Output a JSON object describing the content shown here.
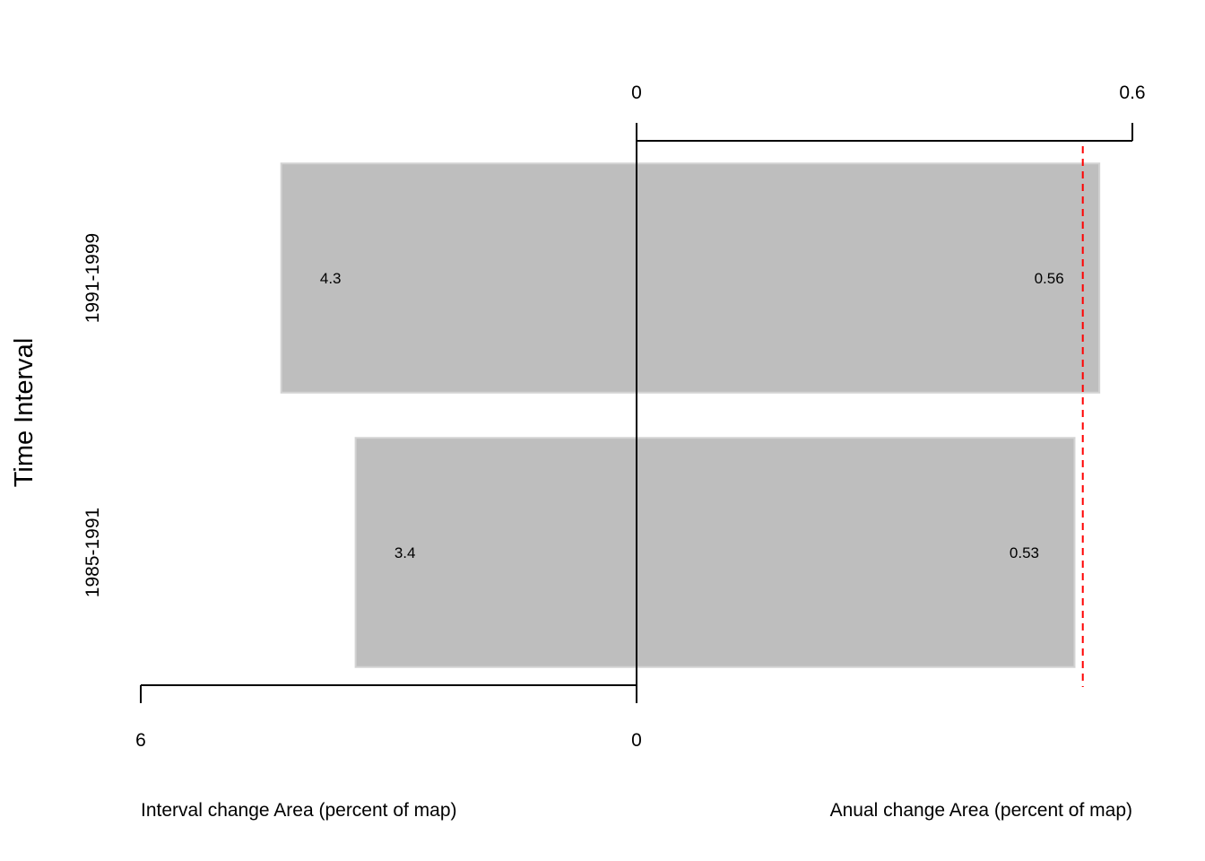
{
  "chart_data": {
    "type": "bar",
    "orientation": "horizontal",
    "ylabel": "Time Interval",
    "categories": [
      "1985-1991",
      "1991-1999"
    ],
    "interval_axis": {
      "label": "Interval change Area (percent of map)",
      "range": [
        0,
        6
      ],
      "tick_labels": [
        "6",
        "0"
      ],
      "direction": "leftward"
    },
    "annual_axis": {
      "label": "Anual change Area (percent of map)",
      "range": [
        0,
        0.6
      ],
      "tick_labels": [
        "0",
        "0.6"
      ],
      "direction": "rightward"
    },
    "series": [
      {
        "axis": "interval",
        "values": [
          3.4,
          4.3
        ],
        "labels": [
          "3.4",
          "4.3"
        ]
      },
      {
        "axis": "annual",
        "values": [
          0.53,
          0.56
        ],
        "labels": [
          "0.53",
          "0.56"
        ]
      }
    ],
    "uniform_rate": 0.54,
    "colors": {
      "bar_fill": "#bebebe",
      "bar_stroke": "#d3d3d3",
      "uniform_line": "#ff0000",
      "axis": "#000000"
    },
    "grid": false,
    "legend": "none"
  }
}
